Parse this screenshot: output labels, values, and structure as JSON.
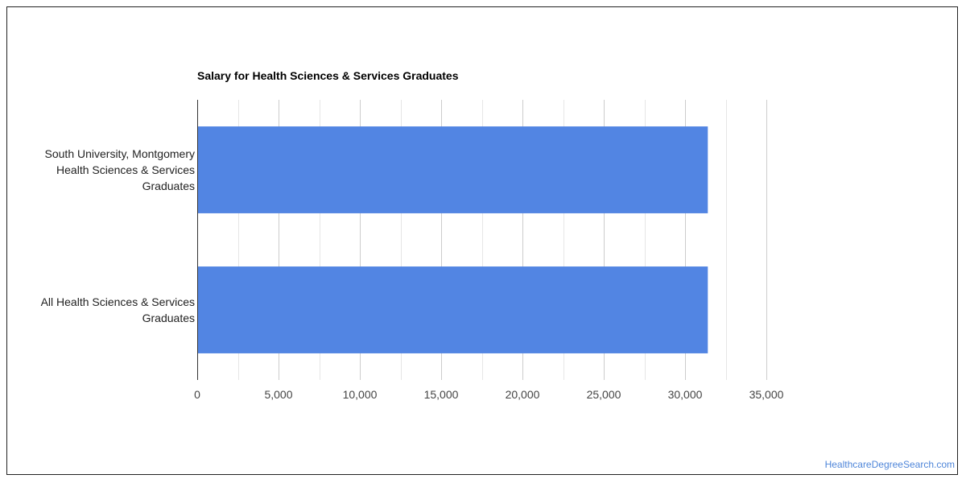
{
  "chart_data": {
    "type": "bar",
    "orientation": "horizontal",
    "title": "Salary for Health Sciences & Services Graduates",
    "categories": [
      [
        "South University, Montgomery",
        "Health Sciences & Services",
        "Graduates"
      ],
      [
        "All Health Sciences & Services",
        "Graduates"
      ]
    ],
    "values": [
      31400,
      31400
    ],
    "xlim": [
      0,
      35000
    ],
    "x_ticks": [
      "0",
      "5,000",
      "10,000",
      "15,000",
      "20,000",
      "25,000",
      "30,000",
      "35,000"
    ],
    "x_tick_values": [
      0,
      5000,
      10000,
      15000,
      20000,
      25000,
      30000,
      35000
    ],
    "grid": true,
    "bar_color": "#5285e3",
    "xlabel": "",
    "ylabel": ""
  },
  "footer": {
    "credit": "HealthcareDegreeSearch.com",
    "credit_color": "#4f86d9"
  }
}
